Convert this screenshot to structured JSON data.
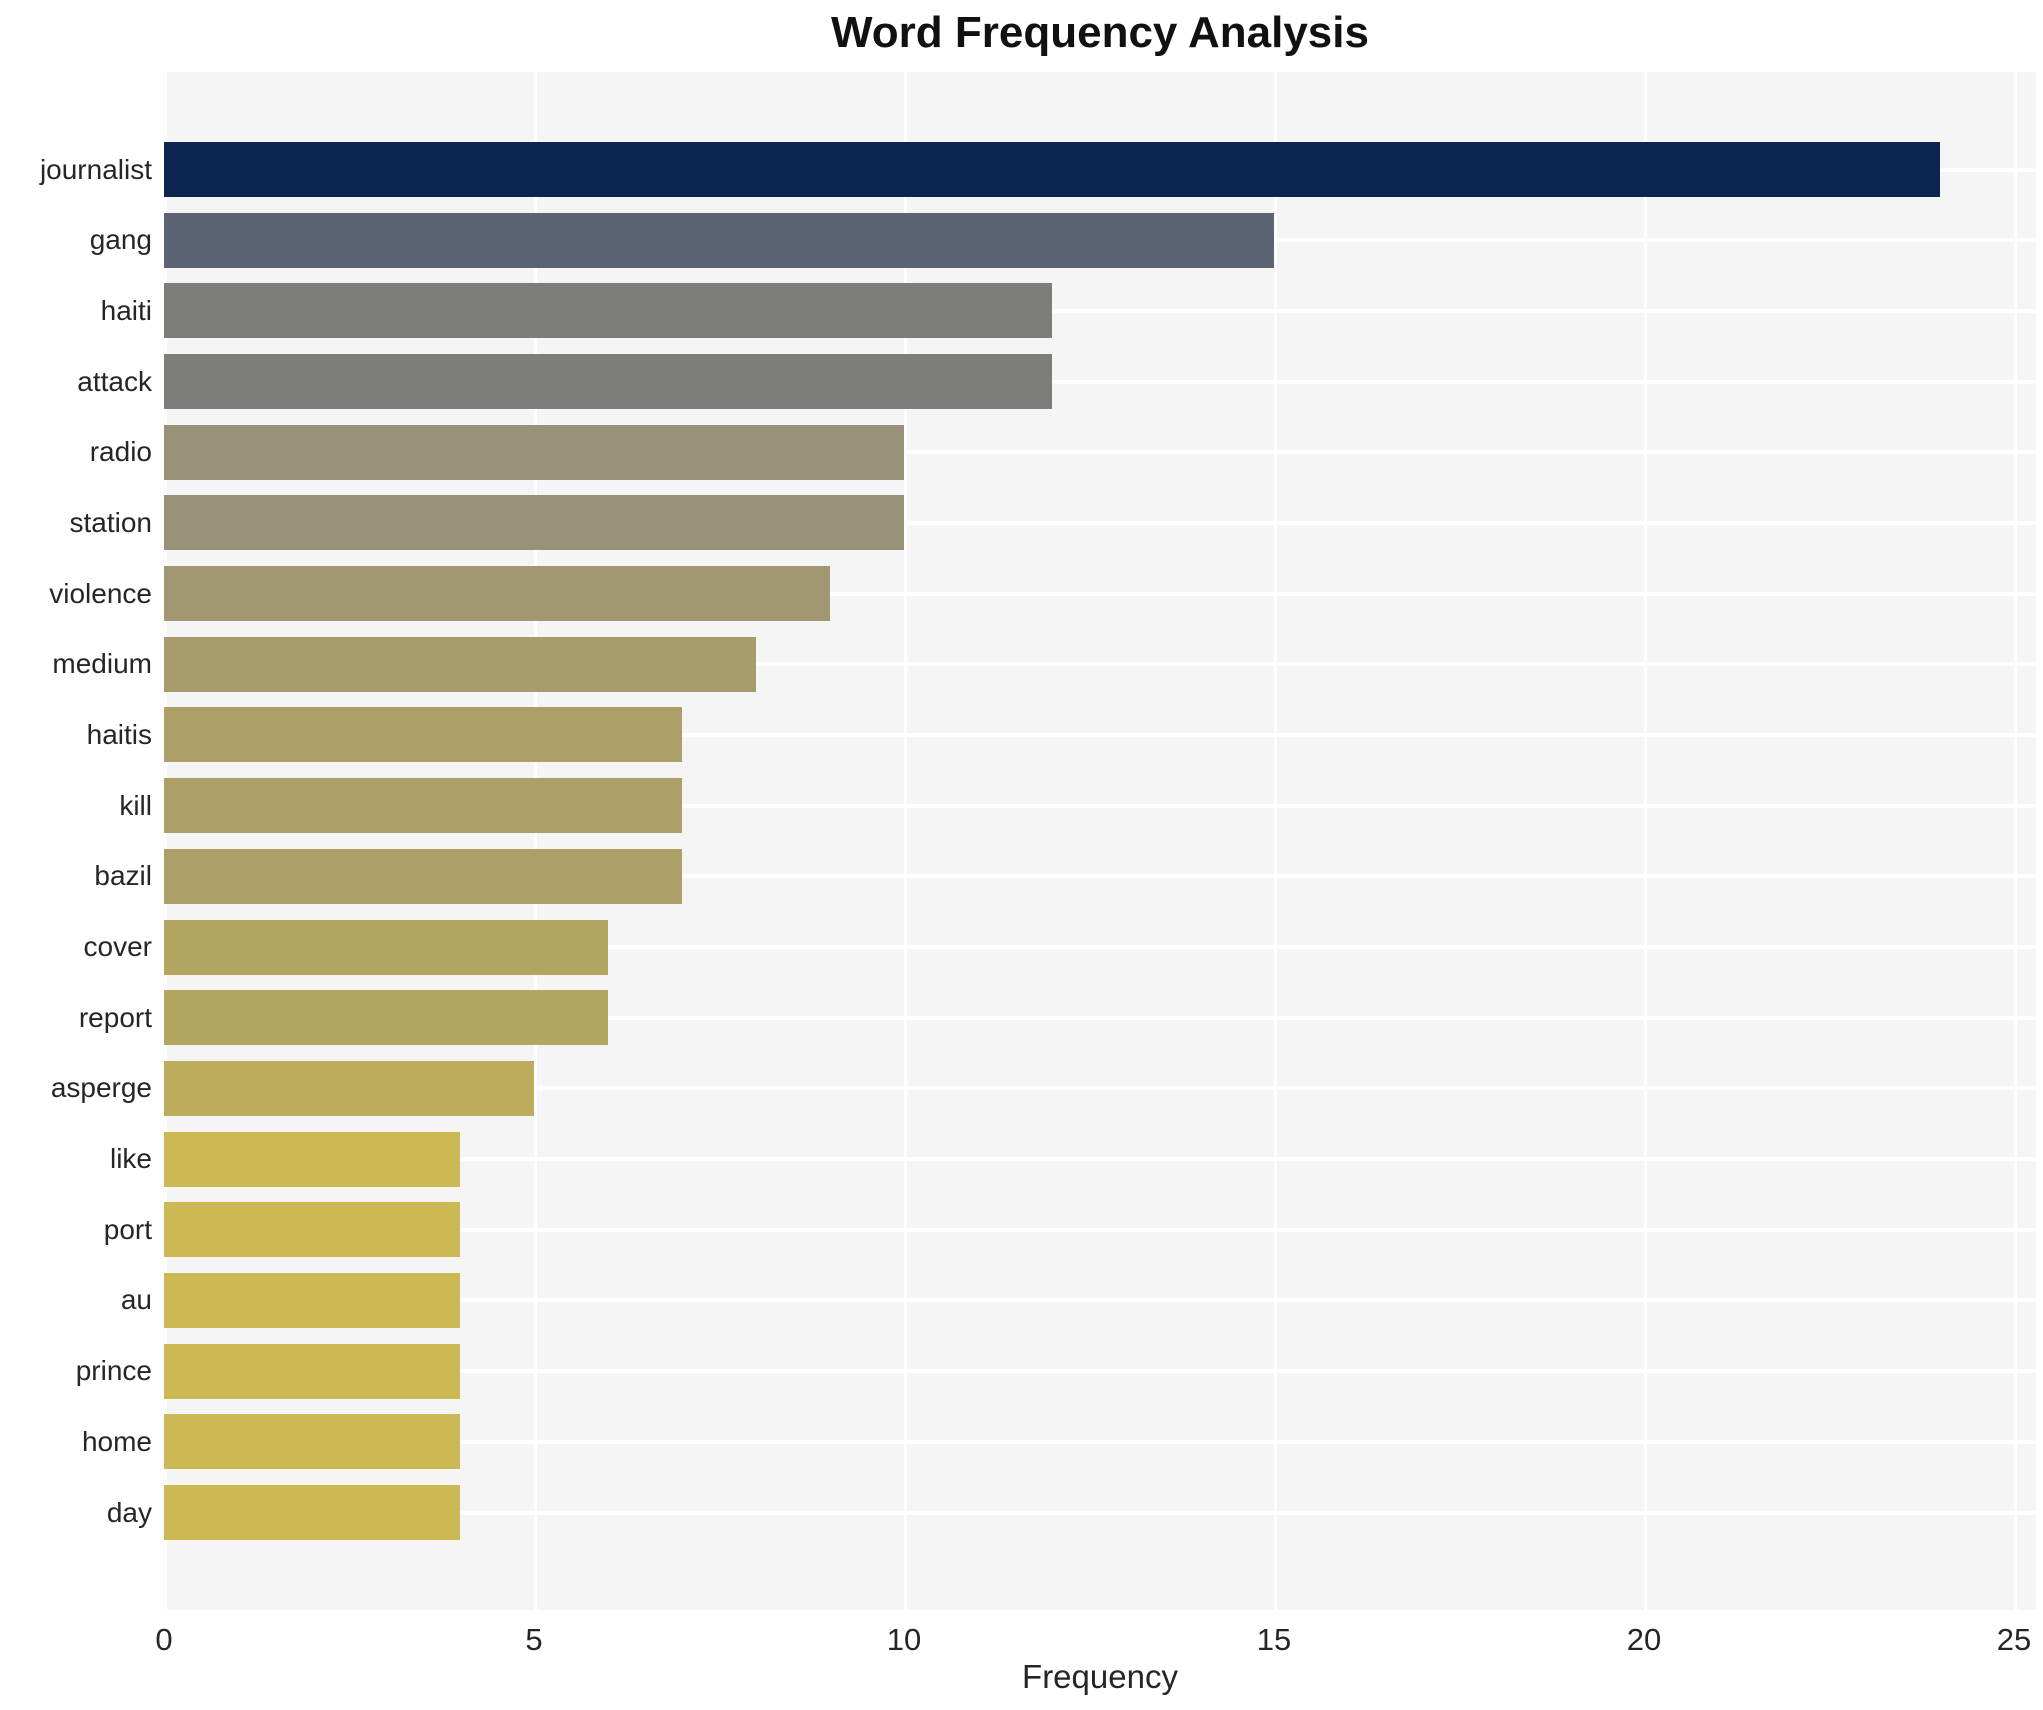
{
  "chart_data": {
    "type": "bar",
    "orientation": "horizontal",
    "title": "Word Frequency Analysis",
    "xlabel": "Frequency",
    "ylabel": "",
    "xlim": [
      0,
      25.3
    ],
    "xticks": [
      0,
      5,
      10,
      15,
      20,
      25
    ],
    "grid": true,
    "legend": false,
    "colors": {
      "page_background": "#ffffff",
      "plot_background": "#f5f5f6",
      "gridline": "#ffffff",
      "title_text": "#111111",
      "axis_text": "#262626"
    },
    "categories": [
      "journalist",
      "gang",
      "haiti",
      "attack",
      "radio",
      "station",
      "violence",
      "medium",
      "haitis",
      "kill",
      "bazil",
      "cover",
      "report",
      "asperge",
      "like",
      "port",
      "au",
      "prince",
      "home",
      "day"
    ],
    "values": [
      24,
      15,
      12,
      12,
      10,
      10,
      9,
      8,
      7,
      7,
      7,
      6,
      6,
      5,
      4,
      4,
      4,
      4,
      4,
      4
    ],
    "bar_colors": [
      "#0b2450",
      "#5c6372",
      "#7d7d7a",
      "#7d7d7a",
      "#999177",
      "#999177",
      "#a19772",
      "#a89c6d",
      "#ad9f68",
      "#ad9f68",
      "#ad9f68",
      "#b3a663",
      "#b3a663",
      "#bdab5e",
      "#cdb954",
      "#cdb954",
      "#cdb954",
      "#cdb954",
      "#cdb954",
      "#cdb954"
    ]
  }
}
